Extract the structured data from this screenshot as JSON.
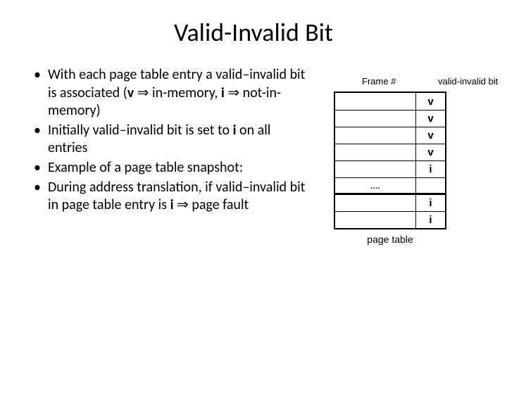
{
  "title": "Valid-Invalid Bit",
  "bullets": {
    "b1_pre": "With each page table entry a valid–invalid bit is associated (",
    "b1_v": "v",
    "b1_mid1": " ",
    "b1_arrow1": "⇒",
    "b1_mid2": " in-memory, ",
    "b1_i": "i",
    "b1_mid3": " ",
    "b1_arrow2": "⇒",
    "b1_post": " not-in-memory)",
    "b2_pre": "Initially valid–invalid bit is set to ",
    "b2_i": "i",
    "b2_post": " on all entries",
    "b3": "Example of a page table snapshot:",
    "b4_pre": "During address translation, if valid–invalid bit in page table entry is ",
    "b4_i": "i",
    "b4_mid": " ",
    "b4_arrow": "⇒",
    "b4_post": " page fault"
  },
  "table": {
    "header_frame": "Frame #",
    "header_vi": "valid-invalid bit",
    "rows": [
      {
        "frame": "",
        "bit": "v"
      },
      {
        "frame": "",
        "bit": "v"
      },
      {
        "frame": "",
        "bit": "v"
      },
      {
        "frame": "",
        "bit": "v"
      },
      {
        "frame": "",
        "bit": "i"
      },
      {
        "frame": "….",
        "bit": ""
      },
      {
        "frame": "",
        "bit": "i"
      },
      {
        "frame": "",
        "bit": "i"
      }
    ],
    "caption": "page table"
  }
}
